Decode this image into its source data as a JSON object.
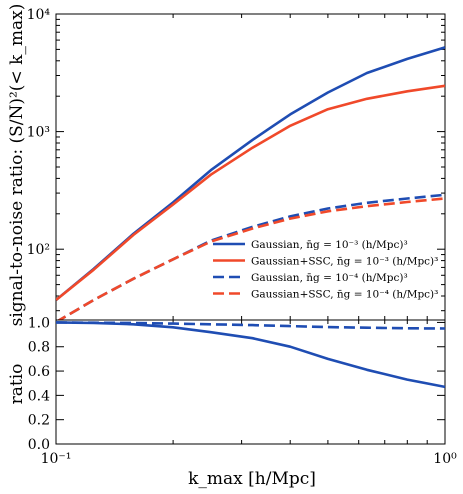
{
  "chart_data": [
    {
      "type": "line",
      "title": "",
      "xlabel": "",
      "ylabel": "signal-to-noise ratio: (S/N)²(< k_max)",
      "xscale": "log",
      "yscale": "log",
      "xlim": [
        0.1,
        1.0
      ],
      "ylim": [
        25,
        10000
      ],
      "grid": false,
      "legend_position": "lower-right",
      "yticks": [
        {
          "value": 100,
          "label": "10²"
        },
        {
          "value": 1000,
          "label": "10³"
        },
        {
          "value": 10000,
          "label": "10⁴"
        }
      ],
      "series": [
        {
          "name": "Gaussian, n̄g = 10⁻³ (h/Mpc)³",
          "color": "#1f4db3",
          "dash": "solid",
          "x": [
            0.1,
            0.125,
            0.158,
            0.2,
            0.25,
            0.32,
            0.4,
            0.5,
            0.63,
            0.8,
            1.0
          ],
          "y": [
            37,
            68,
            135,
            250,
            470,
            850,
            1400,
            2150,
            3150,
            4150,
            5200
          ]
        },
        {
          "name": "Gaussian+SSC, n̄g = 10⁻³ (h/Mpc)³",
          "color": "#f0492a",
          "dash": "solid",
          "x": [
            0.1,
            0.125,
            0.158,
            0.2,
            0.25,
            0.32,
            0.4,
            0.5,
            0.63,
            0.8,
            1.0
          ],
          "y": [
            37,
            67,
            132,
            240,
            430,
            730,
            1120,
            1550,
            1900,
            2200,
            2450
          ]
        },
        {
          "name": "Gaussian, n̄g = 10⁻⁴ (h/Mpc)³",
          "color": "#1f4db3",
          "dash": "dashed",
          "x": [
            0.1,
            0.125,
            0.158,
            0.2,
            0.25,
            0.32,
            0.4,
            0.5,
            0.63,
            0.8,
            1.0
          ],
          "y": [
            24,
            37,
            56,
            82,
            118,
            155,
            190,
            222,
            248,
            270,
            290
          ]
        },
        {
          "name": "Gaussian+SSC, n̄g = 10⁻⁴ (h/Mpc)³",
          "color": "#f0492a",
          "dash": "dashed",
          "x": [
            0.1,
            0.125,
            0.158,
            0.2,
            0.25,
            0.32,
            0.4,
            0.5,
            0.63,
            0.8,
            1.0
          ],
          "y": [
            24,
            37,
            56,
            82,
            116,
            150,
            182,
            210,
            232,
            252,
            270
          ]
        }
      ]
    },
    {
      "type": "line",
      "title": "",
      "xlabel": "k_max [h/Mpc]",
      "ylabel": "ratio",
      "xscale": "log",
      "xlim": [
        0.1,
        1.0
      ],
      "ylim": [
        0.0,
        1.02
      ],
      "grid": false,
      "xticks": [
        {
          "value": 0.1,
          "label": "10⁻¹"
        },
        {
          "value": 1.0,
          "label": "10⁰"
        }
      ],
      "yticks": [
        {
          "value": 0.0,
          "label": "0.0"
        },
        {
          "value": 0.2,
          "label": "0.2"
        },
        {
          "value": 0.4,
          "label": "0.4"
        },
        {
          "value": 0.6,
          "label": "0.6"
        },
        {
          "value": 0.8,
          "label": "0.8"
        },
        {
          "value": 1.0,
          "label": "1.0"
        }
      ],
      "series": [
        {
          "color": "#1f4db3",
          "dash": "solid",
          "x": [
            0.1,
            0.125,
            0.158,
            0.2,
            0.25,
            0.32,
            0.4,
            0.5,
            0.63,
            0.8,
            1.0
          ],
          "y": [
            1.0,
            0.995,
            0.985,
            0.96,
            0.92,
            0.87,
            0.8,
            0.7,
            0.61,
            0.53,
            0.47
          ]
        },
        {
          "color": "#1f4db3",
          "dash": "dashed",
          "x": [
            0.1,
            0.125,
            0.158,
            0.2,
            0.25,
            0.32,
            0.4,
            0.5,
            0.63,
            0.8,
            1.0
          ],
          "y": [
            1.0,
            0.998,
            0.995,
            0.99,
            0.985,
            0.978,
            0.97,
            0.962,
            0.957,
            0.952,
            0.95
          ]
        }
      ]
    }
  ]
}
